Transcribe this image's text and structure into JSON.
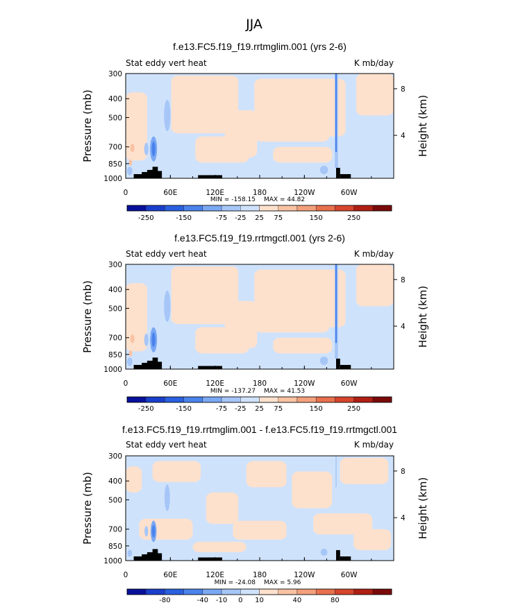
{
  "figure_title": "JJA",
  "palette": [
    "#08109a",
    "#1a3fcc",
    "#2a60e0",
    "#4a83ec",
    "#7aa8f3",
    "#a6c6f8",
    "#cfe2fb",
    "#fde1cd",
    "#f9c2a2",
    "#f3a07c",
    "#e8704d",
    "#d6452c",
    "#b01e14",
    "#7a0a0a"
  ],
  "chart_data": [
    {
      "type": "heatmap",
      "title": "f.e13.FC5.f19_f19.rrtmglim.001 (yrs 2-6)",
      "left_label": "Stat eddy vert heat",
      "right_label": "K mb/day",
      "ylabel": "Pressure (mb)",
      "y2label": "Height (km)",
      "x_ticks": [
        "0",
        "60E",
        "120E",
        "180",
        "120W",
        "60W"
      ],
      "y_ticks": [
        "300",
        "400",
        "500",
        "700",
        "850",
        "1000"
      ],
      "y2_ticks": [
        "8",
        "4"
      ],
      "min_label": "MIN = -158.15",
      "max_label": "MAX =  44.82",
      "colorbar_ticks": [
        "-250",
        "-150",
        "-75",
        "-25",
        "25",
        "75",
        "150",
        "250"
      ],
      "x_range": [
        0,
        360
      ],
      "y_range_mb": [
        300,
        1000
      ]
    },
    {
      "type": "heatmap",
      "title": "f.e13.FC5.f19_f19.rrtmgctl.001 (yrs 2-6)",
      "left_label": "Stat eddy vert heat",
      "right_label": "K mb/day",
      "ylabel": "Pressure (mb)",
      "y2label": "Height (km)",
      "x_ticks": [
        "0",
        "60E",
        "120E",
        "180",
        "120W",
        "60W"
      ],
      "y_ticks": [
        "300",
        "400",
        "500",
        "700",
        "850",
        "1000"
      ],
      "y2_ticks": [
        "8",
        "4"
      ],
      "min_label": "MIN = -137.27",
      "max_label": "MAX =  41.53",
      "colorbar_ticks": [
        "-250",
        "-150",
        "-75",
        "-25",
        "25",
        "75",
        "150",
        "250"
      ],
      "x_range": [
        0,
        360
      ],
      "y_range_mb": [
        300,
        1000
      ]
    },
    {
      "type": "heatmap",
      "title": "f.e13.FC5.f19_f19.rrtmglim.001 - f.e13.FC5.f19_f19.rrtmgctl.001",
      "left_label": "Stat eddy vert heat",
      "right_label": "K mb/day",
      "ylabel": "Pressure (mb)",
      "y2label": "Height (km)",
      "x_ticks": [
        "0",
        "60E",
        "120E",
        "180",
        "120W",
        "60W"
      ],
      "y_ticks": [
        "300",
        "400",
        "500",
        "700",
        "850",
        "1000"
      ],
      "y2_ticks": [
        "8",
        "4"
      ],
      "min_label": "MIN = -24.08",
      "max_label": "MAX =   5.96",
      "colorbar_ticks": [
        "-80",
        "-40",
        "-10",
        "0",
        "10",
        "40",
        "80"
      ],
      "x_range": [
        0,
        360
      ],
      "y_range_mb": [
        300,
        1000
      ]
    }
  ]
}
